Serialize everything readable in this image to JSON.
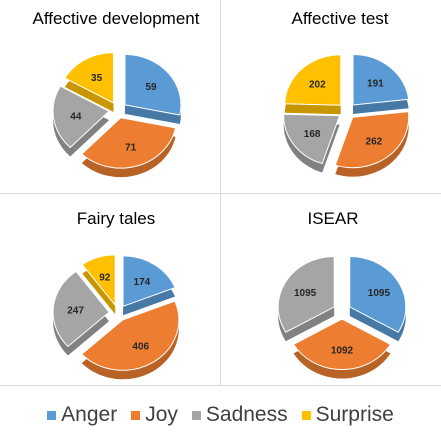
{
  "chart_data": [
    {
      "type": "pie",
      "title": "Affective development",
      "categories": [
        "Anger",
        "Joy",
        "Sadness",
        "Surprise"
      ],
      "values": [
        59,
        71,
        44,
        35
      ]
    },
    {
      "type": "pie",
      "title": "Affective test",
      "categories": [
        "Anger",
        "Joy",
        "Sadness",
        "Surprise"
      ],
      "values": [
        191,
        262,
        168,
        202
      ]
    },
    {
      "type": "pie",
      "title": "Fairy tales",
      "categories": [
        "Anger",
        "Joy",
        "Sadness",
        "Surprise"
      ],
      "values": [
        174,
        406,
        247,
        92
      ]
    },
    {
      "type": "pie",
      "title": "ISEAR",
      "categories": [
        "Anger",
        "Joy",
        "Sadness",
        "Surprise"
      ],
      "values": [
        1095,
        1092,
        1095,
        0
      ]
    }
  ],
  "legend": {
    "position": "bottom",
    "items": [
      {
        "label": "Anger",
        "color": "#5B9BD5"
      },
      {
        "label": "Joy",
        "color": "#ED7D31"
      },
      {
        "label": "Sadness",
        "color": "#A5A5A5"
      },
      {
        "label": "Surprise",
        "color": "#FFC000"
      }
    ]
  }
}
